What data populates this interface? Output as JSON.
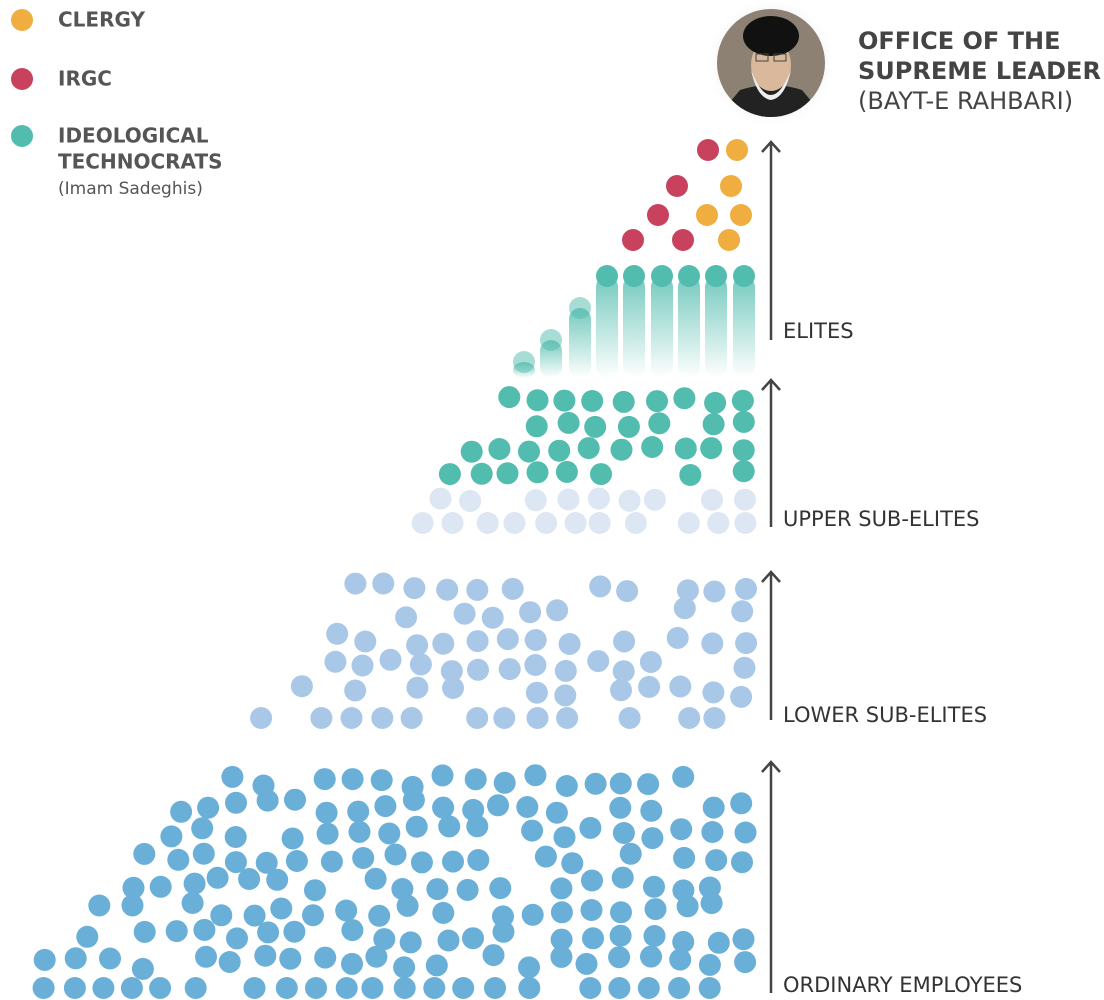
{
  "legend": [
    {
      "label_lines": [
        "CLERGY"
      ]
    },
    {
      "label_lines": [
        "IRGC"
      ]
    },
    {
      "label_lines": [
        "IDEOLOGICAL",
        "TECHNOCRATS"
      ],
      "note": "(Imam Sadeghis)"
    }
  ],
  "leader": {
    "title_lines": [
      "OFFICE OF THE",
      "SUPREME LEADER"
    ],
    "subtitle": "(BAYT-E RAHBARI)"
  },
  "tiers": [
    "ELITES",
    "UPPER SUB-ELITES",
    "LOWER SUB-ELITES",
    "ORDINARY EMPLOYEES"
  ]
}
